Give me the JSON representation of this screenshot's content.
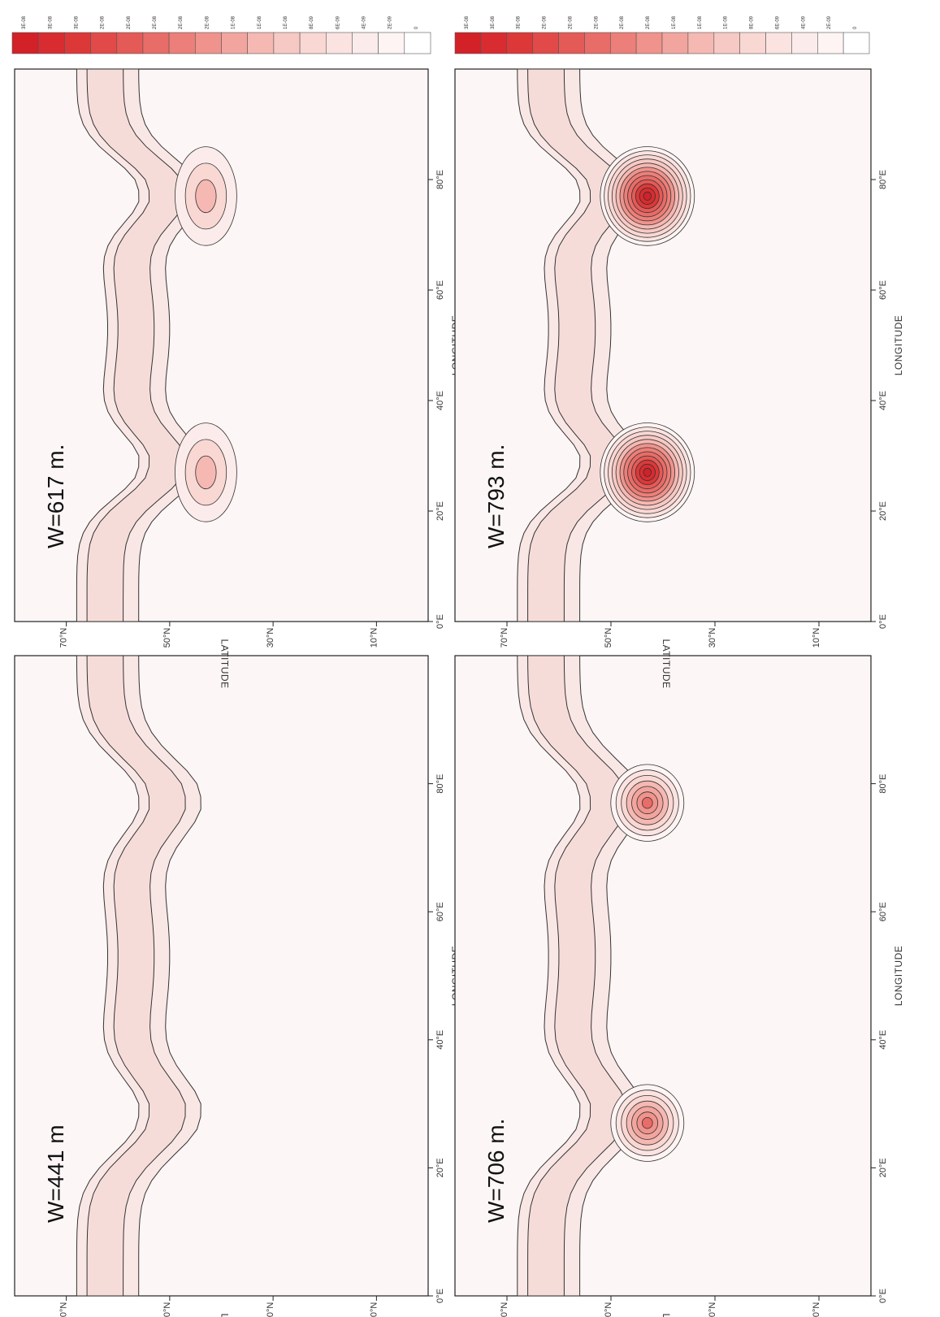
{
  "chart_data": {
    "type": "heatmap",
    "colorbar": {
      "labels": [
        "3E-08",
        "3E-08",
        "3E-08",
        "2E-08",
        "2E-08",
        "2E-08",
        "2E-08",
        "2E-08",
        "1E-08",
        "1E-08",
        "1E-08",
        "8E-09",
        "6E-09",
        "4E-09",
        "2E-09",
        "0"
      ],
      "colors": [
        "#d32128",
        "#d82c30",
        "#dd3838",
        "#e14a48",
        "#e45a57",
        "#e86c67",
        "#ec7f79",
        "#ef938c",
        "#f2a59f",
        "#f5b8b2",
        "#f7c9c4",
        "#f9d7d3",
        "#fae3e0",
        "#fbeceb",
        "#fdf4f3",
        "#ffffff"
      ]
    },
    "panels": [
      {
        "label": "W=441 m",
        "xlabel": "LONGITUDE",
        "ylabel": "LATITUDE",
        "x_ticks": [
          "0°E",
          "20°E",
          "40°E",
          "60°E",
          "80°E"
        ],
        "y_ticks": [
          "10°N",
          "30°N",
          "50°N",
          "70°N"
        ],
        "xlim": [
          0,
          100
        ],
        "ylim": [
          0,
          80
        ],
        "peak_value": 3e-09
      },
      {
        "label": "W=617 m.",
        "xlabel": "LONGITUDE",
        "ylabel": "LATITUDE",
        "x_ticks": [
          "0°E",
          "20°E",
          "40°E",
          "60°E",
          "80°E"
        ],
        "y_ticks": [
          "10°N",
          "30°N",
          "50°N",
          "70°N"
        ],
        "xlim": [
          0,
          100
        ],
        "ylim": [
          0,
          80
        ],
        "peak_value": 1e-08
      },
      {
        "label": "W=706 m.",
        "xlabel": "LONGITUDE",
        "ylabel": "LATITUDE",
        "x_ticks": [
          "0°E",
          "20°E",
          "40°E",
          "60°E",
          "80°E"
        ],
        "y_ticks": [
          "10°N",
          "30°N",
          "50°N",
          "70°N"
        ],
        "xlim": [
          0,
          100
        ],
        "ylim": [
          0,
          80
        ],
        "peak_value": 2e-08
      },
      {
        "label": "W=793 m.",
        "xlabel": "LONGITUDE",
        "ylabel": "LATITUDE",
        "x_ticks": [
          "0°E",
          "20°E",
          "40°E",
          "60°E",
          "80°E"
        ],
        "y_ticks": [
          "10°N",
          "30°N",
          "50°N",
          "70°N"
        ],
        "xlim": [
          0,
          100
        ],
        "ylim": [
          0,
          80
        ],
        "peak_value": 3e-08
      }
    ]
  }
}
